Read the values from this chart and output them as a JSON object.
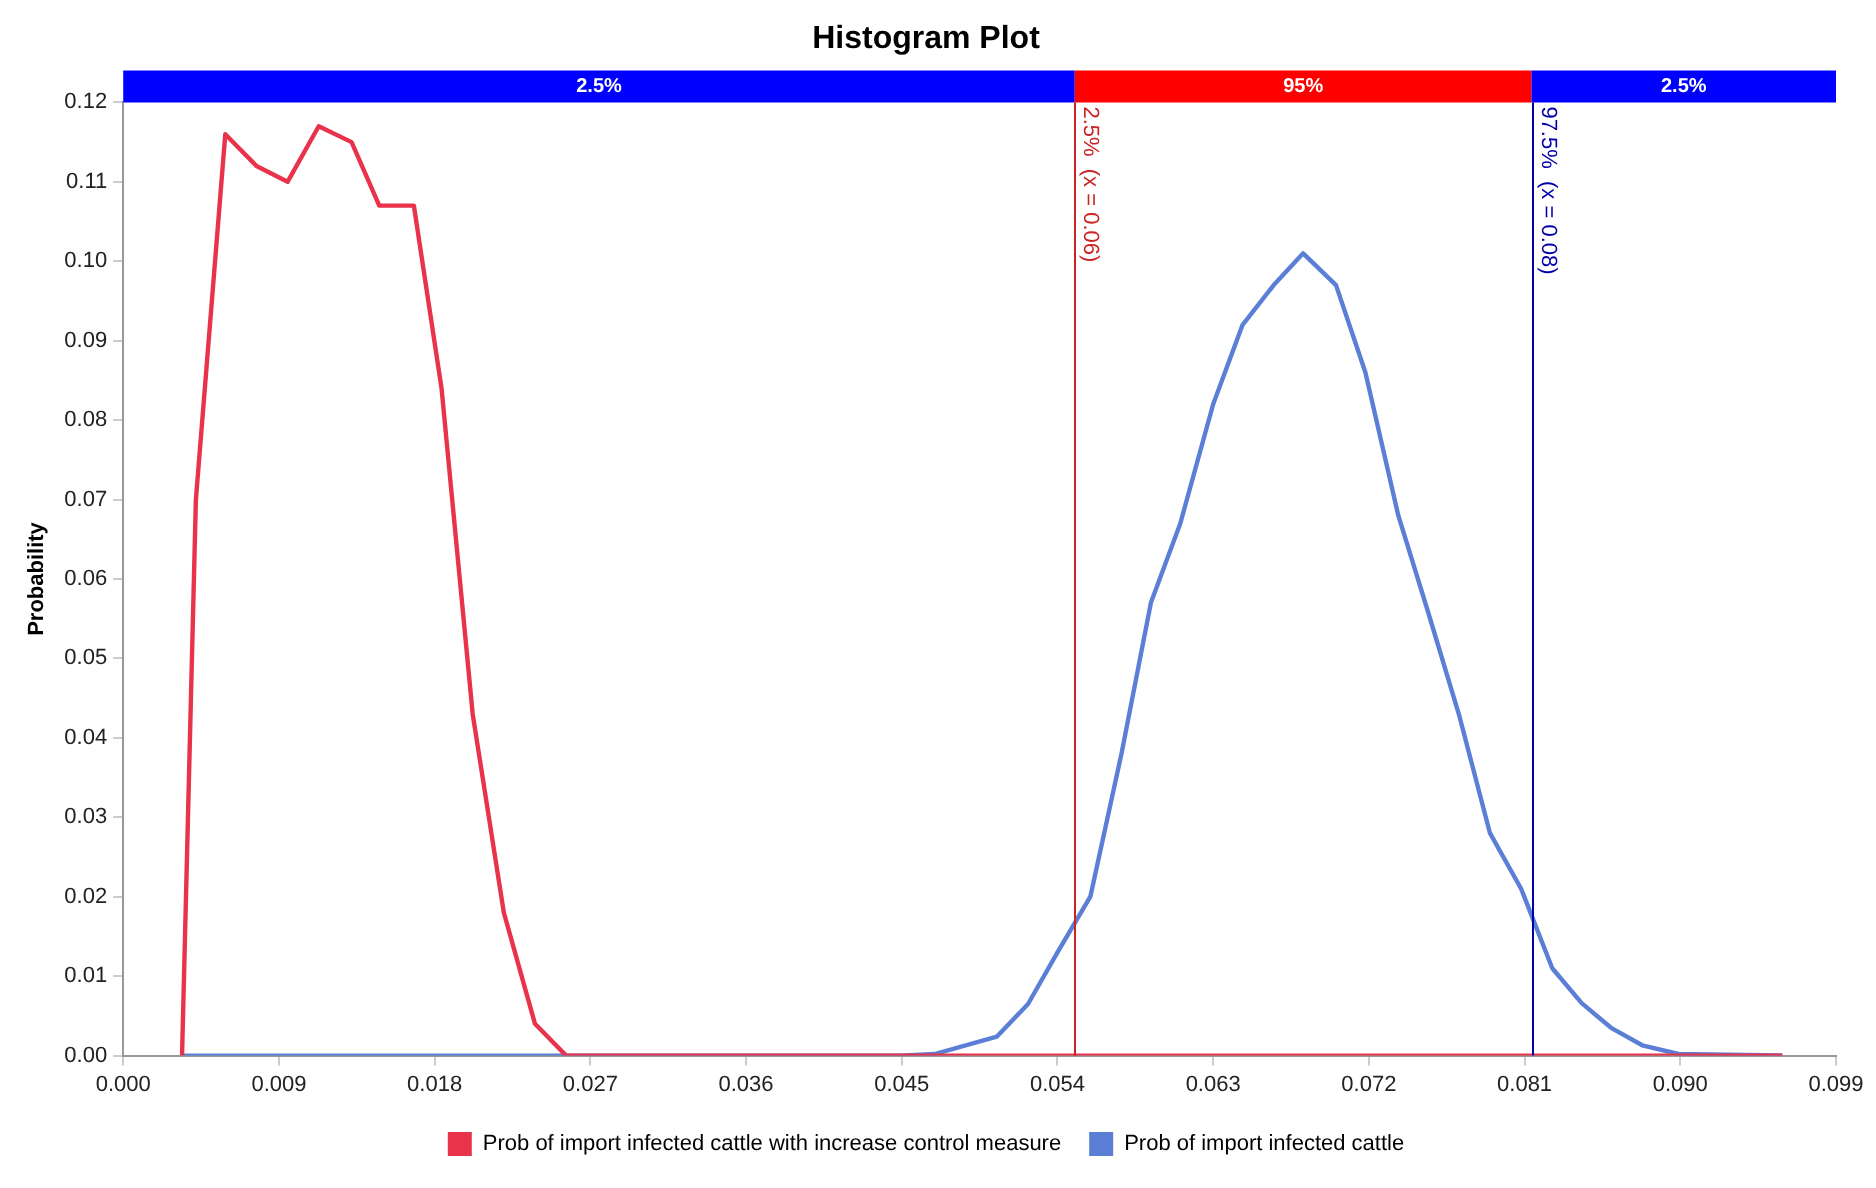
{
  "chart_data": {
    "type": "line",
    "title": "Histogram Plot",
    "ylabel": "Probability",
    "xlim": [
      0,
      0.099
    ],
    "xticks": [
      {
        "value": 0,
        "label": "0.000"
      },
      {
        "value": 0.009,
        "label": "0.009"
      },
      {
        "value": 0.018,
        "label": "0.018"
      },
      {
        "value": 0.027,
        "label": "0.027"
      },
      {
        "value": 0.036,
        "label": "0.036"
      },
      {
        "value": 0.045,
        "label": "0.045"
      },
      {
        "value": 0.054,
        "label": "0.054"
      },
      {
        "value": 0.063,
        "label": "0.063"
      },
      {
        "value": 0.072,
        "label": "0.072"
      },
      {
        "value": 0.081,
        "label": "0.081"
      },
      {
        "value": 0.09,
        "label": "0.090"
      },
      {
        "value": 0.099,
        "label": "0.099"
      }
    ],
    "ylim": [
      0,
      0.12
    ],
    "yticks": [
      {
        "value": 0,
        "label": "0.00"
      },
      {
        "value": 0.01,
        "label": "0.01"
      },
      {
        "value": 0.02,
        "label": "0.02"
      },
      {
        "value": 0.03,
        "label": "0.03"
      },
      {
        "value": 0.04,
        "label": "0.04"
      },
      {
        "value": 0.05,
        "label": "0.05"
      },
      {
        "value": 0.06,
        "label": "0.06"
      },
      {
        "value": 0.07,
        "label": "0.07"
      },
      {
        "value": 0.08,
        "label": "0.08"
      },
      {
        "value": 0.09,
        "label": "0.09"
      },
      {
        "value": 0.1,
        "label": "0.10"
      },
      {
        "value": 0.11,
        "label": "0.11"
      },
      {
        "value": 0.12,
        "label": "0.12"
      }
    ],
    "grid": false,
    "legend": "bottom",
    "marker": "none",
    "line_style": "solid",
    "series": [
      {
        "name": "Prob of import infected cattle with increase control measure",
        "color": "#e8334a",
        "x": [
          0.0034,
          0.0042,
          0.0059,
          0.0077,
          0.0095,
          0.0113,
          0.0132,
          0.0148,
          0.0168,
          0.0184,
          0.0202,
          0.022,
          0.0238,
          0.0256,
          0.0959
        ],
        "values": [
          0,
          0.07,
          0.116,
          0.112,
          0.11,
          0.117,
          0.115,
          0.107,
          0.107,
          0.084,
          0.043,
          0.018,
          0.004,
          0,
          0
        ]
      },
      {
        "name": "Prob of import infected cattle",
        "color": "#5b7fd6",
        "x": [
          0.0034,
          0.0449,
          0.0469,
          0.0505,
          0.0523,
          0.054,
          0.0559,
          0.0577,
          0.0594,
          0.0611,
          0.063,
          0.0647,
          0.0665,
          0.0682,
          0.0701,
          0.0718,
          0.0737,
          0.0754,
          0.0772,
          0.079,
          0.0808,
          0.0826,
          0.0843,
          0.086,
          0.0878,
          0.0899,
          0.0959
        ],
        "values": [
          0,
          0,
          0.0002,
          0.0024,
          0.0065,
          0.013,
          0.02,
          0.038,
          0.057,
          0.067,
          0.082,
          0.092,
          0.097,
          0.101,
          0.097,
          0.086,
          0.068,
          0.056,
          0.043,
          0.028,
          0.021,
          0.011,
          0.0066,
          0.0035,
          0.0013,
          0.0002,
          0
        ]
      }
    ],
    "ref_lines": [
      {
        "axis": "x",
        "value": 0.055,
        "label": "2.5%  (x = 0.06)",
        "color": "#cc2222"
      },
      {
        "axis": "x",
        "value": 0.0814,
        "label": "97.5%  (x = 0.08)",
        "color": "#0000aa"
      }
    ],
    "annotations": [
      "2.5%",
      "95%",
      "2.5%"
    ]
  }
}
